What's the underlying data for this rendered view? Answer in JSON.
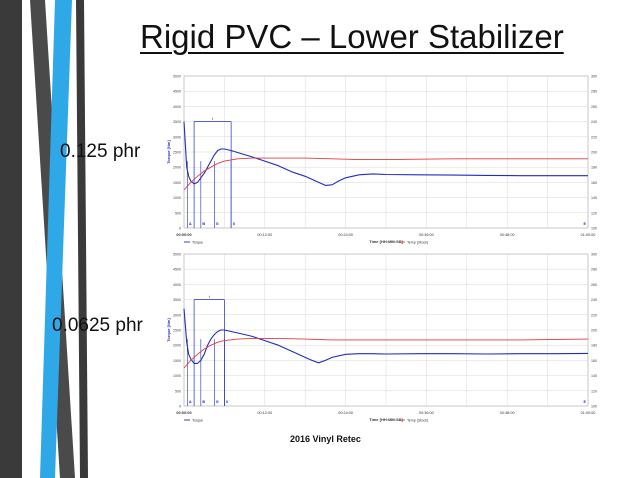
{
  "slide": {
    "title": "Rigid PVC – Lower Stabilizer",
    "footer": "2016 Vinyl Retec"
  },
  "colors": {
    "torque": "#1f2fbf",
    "temp": "#e23b3b",
    "accent": "#2fa8e8",
    "decor": "#3a3a3a"
  },
  "chart_data": [
    {
      "type": "line",
      "label": "0.125 phr",
      "xlabel": "Time [HH:MM:SS]",
      "ylabel_left": "Torque [Nm]",
      "ylabel_right": "Temp [Stock] [°C]",
      "x_ticks": [
        "00:00:00",
        "00:12:00",
        "00:24:00",
        "00:36:00",
        "00:48:00",
        "01:00:00"
      ],
      "xlim": [
        0,
        60
      ],
      "ylim_left": [
        0,
        5000
      ],
      "ylim_right": [
        100,
        300
      ],
      "y_ticks_left": [
        0,
        500,
        1000,
        1500,
        2000,
        2500,
        3000,
        3500,
        4000,
        4500,
        5000
      ],
      "y_ticks_right": [
        100,
        120,
        140,
        160,
        180,
        200,
        220,
        240,
        260,
        280,
        300
      ],
      "markers": [
        {
          "label": "A",
          "x": 0.5
        },
        {
          "label": "B",
          "x": 2.5
        },
        {
          "label": "G",
          "x": 4.5
        },
        {
          "label": "X",
          "x": 7.0
        }
      ],
      "interval_label": "t",
      "interval": [
        1.5,
        7.0
      ],
      "legend": [
        "Torque",
        "Temp (Stock)"
      ],
      "grid": true,
      "series": [
        {
          "name": "Torque",
          "axis": "left",
          "x": [
            0,
            0.4,
            0.7,
            1.0,
            1.5,
            2.0,
            2.5,
            3.0,
            3.5,
            4.0,
            4.5,
            5.0,
            5.5,
            6.0,
            7.0,
            8.0,
            10.0,
            12.0,
            14.0,
            16.0,
            18.0,
            20.0,
            21.0,
            22.0,
            23.0,
            24.0,
            26.0,
            28.0,
            30.0,
            35.0,
            40.0,
            45.0,
            50.0,
            55.0,
            60.0
          ],
          "y": [
            3500,
            2000,
            1700,
            1550,
            1450,
            1500,
            1650,
            1800,
            2000,
            2200,
            2400,
            2550,
            2600,
            2600,
            2550,
            2480,
            2350,
            2200,
            2050,
            1850,
            1700,
            1500,
            1400,
            1420,
            1550,
            1650,
            1750,
            1780,
            1760,
            1750,
            1740,
            1730,
            1720,
            1720,
            1720
          ]
        },
        {
          "name": "Temp (Stock)",
          "axis": "right",
          "x": [
            0,
            1.0,
            2.0,
            3.0,
            4.0,
            5.0,
            6.0,
            8.0,
            10.0,
            14.0,
            18.0,
            22.0,
            26.0,
            30.0,
            40.0,
            50.0,
            60.0
          ],
          "y": [
            150,
            160,
            168,
            175,
            180,
            185,
            188,
            191,
            192,
            192,
            192,
            191,
            190,
            190,
            191,
            191,
            191
          ]
        }
      ]
    },
    {
      "type": "line",
      "label": "0.0625 phr",
      "xlabel": "Time [HH:MM:SS]",
      "ylabel_left": "Torque [Nm]",
      "ylabel_right": "Temp [Stock] [°C]",
      "x_ticks": [
        "00:00:00",
        "00:12:00",
        "00:24:00",
        "00:36:00",
        "00:48:00",
        "01:00:00"
      ],
      "xlim": [
        0,
        60
      ],
      "ylim_left": [
        0,
        5000
      ],
      "ylim_right": [
        100,
        300
      ],
      "y_ticks_left": [
        0,
        500,
        1000,
        1500,
        2000,
        2500,
        3000,
        3500,
        4000,
        4500,
        5000
      ],
      "y_ticks_right": [
        100,
        120,
        140,
        160,
        180,
        200,
        220,
        240,
        260,
        280,
        300
      ],
      "markers": [
        {
          "label": "A",
          "x": 0.5
        },
        {
          "label": "B",
          "x": 2.5
        },
        {
          "label": "G",
          "x": 4.5
        },
        {
          "label": "X",
          "x": 6.0
        }
      ],
      "interval_label": "t",
      "interval": [
        1.5,
        6.0
      ],
      "legend": [
        "Torque",
        "Temp (Stock)"
      ],
      "grid": true,
      "series": [
        {
          "name": "Torque",
          "axis": "left",
          "x": [
            0,
            0.4,
            0.7,
            1.0,
            1.5,
            2.0,
            2.5,
            3.0,
            3.5,
            4.0,
            4.5,
            5.0,
            5.5,
            6.0,
            7.0,
            8.0,
            10.0,
            12.0,
            14.0,
            16.0,
            18.0,
            19.0,
            20.0,
            21.0,
            22.0,
            24.0,
            26.0,
            28.0,
            30.0,
            35.0,
            40.0,
            45.0,
            50.0,
            55.0,
            60.0
          ],
          "y": [
            3200,
            2100,
            1700,
            1550,
            1400,
            1400,
            1500,
            1700,
            2000,
            2200,
            2350,
            2450,
            2500,
            2500,
            2450,
            2400,
            2300,
            2150,
            2000,
            1800,
            1600,
            1500,
            1420,
            1500,
            1600,
            1700,
            1720,
            1720,
            1710,
            1720,
            1720,
            1710,
            1720,
            1720,
            1730
          ]
        },
        {
          "name": "Temp (Stock)",
          "axis": "right",
          "x": [
            0,
            1.0,
            2.0,
            3.0,
            4.0,
            5.0,
            6.0,
            8.0,
            10.0,
            14.0,
            18.0,
            22.0,
            26.0,
            30.0,
            40.0,
            50.0,
            60.0
          ],
          "y": [
            150,
            160,
            168,
            175,
            180,
            184,
            186,
            188,
            189,
            189,
            188,
            187,
            187,
            187,
            187,
            187,
            188
          ]
        }
      ]
    }
  ]
}
